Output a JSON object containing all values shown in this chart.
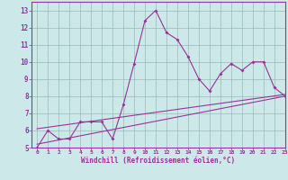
{
  "xlabel": "Windchill (Refroidissement éolien,°C)",
  "xlim": [
    -0.5,
    23
  ],
  "ylim": [
    5,
    13.5
  ],
  "xticks": [
    0,
    1,
    2,
    3,
    4,
    5,
    6,
    7,
    8,
    9,
    10,
    11,
    12,
    13,
    14,
    15,
    16,
    17,
    18,
    19,
    20,
    21,
    22,
    23
  ],
  "yticks": [
    5,
    6,
    7,
    8,
    9,
    10,
    11,
    12,
    13
  ],
  "background_color": "#cce8e8",
  "line_color": "#993399",
  "grid_color": "#99bbbb",
  "main_data_x": [
    0,
    1,
    2,
    3,
    4,
    5,
    6,
    7,
    8,
    9,
    10,
    11,
    12,
    13,
    14,
    15,
    16,
    17,
    18,
    19,
    20,
    21,
    22,
    23
  ],
  "main_data_y": [
    5.0,
    6.0,
    5.5,
    5.5,
    6.5,
    6.5,
    6.5,
    5.5,
    7.5,
    9.9,
    12.4,
    13.0,
    11.7,
    11.3,
    10.3,
    9.0,
    8.3,
    9.3,
    9.9,
    9.5,
    10.0,
    10.0,
    8.5,
    8.0
  ],
  "trend1_x": [
    0,
    23
  ],
  "trend1_y": [
    5.2,
    8.0
  ],
  "trend2_x": [
    0,
    23
  ],
  "trend2_y": [
    6.1,
    8.1
  ]
}
